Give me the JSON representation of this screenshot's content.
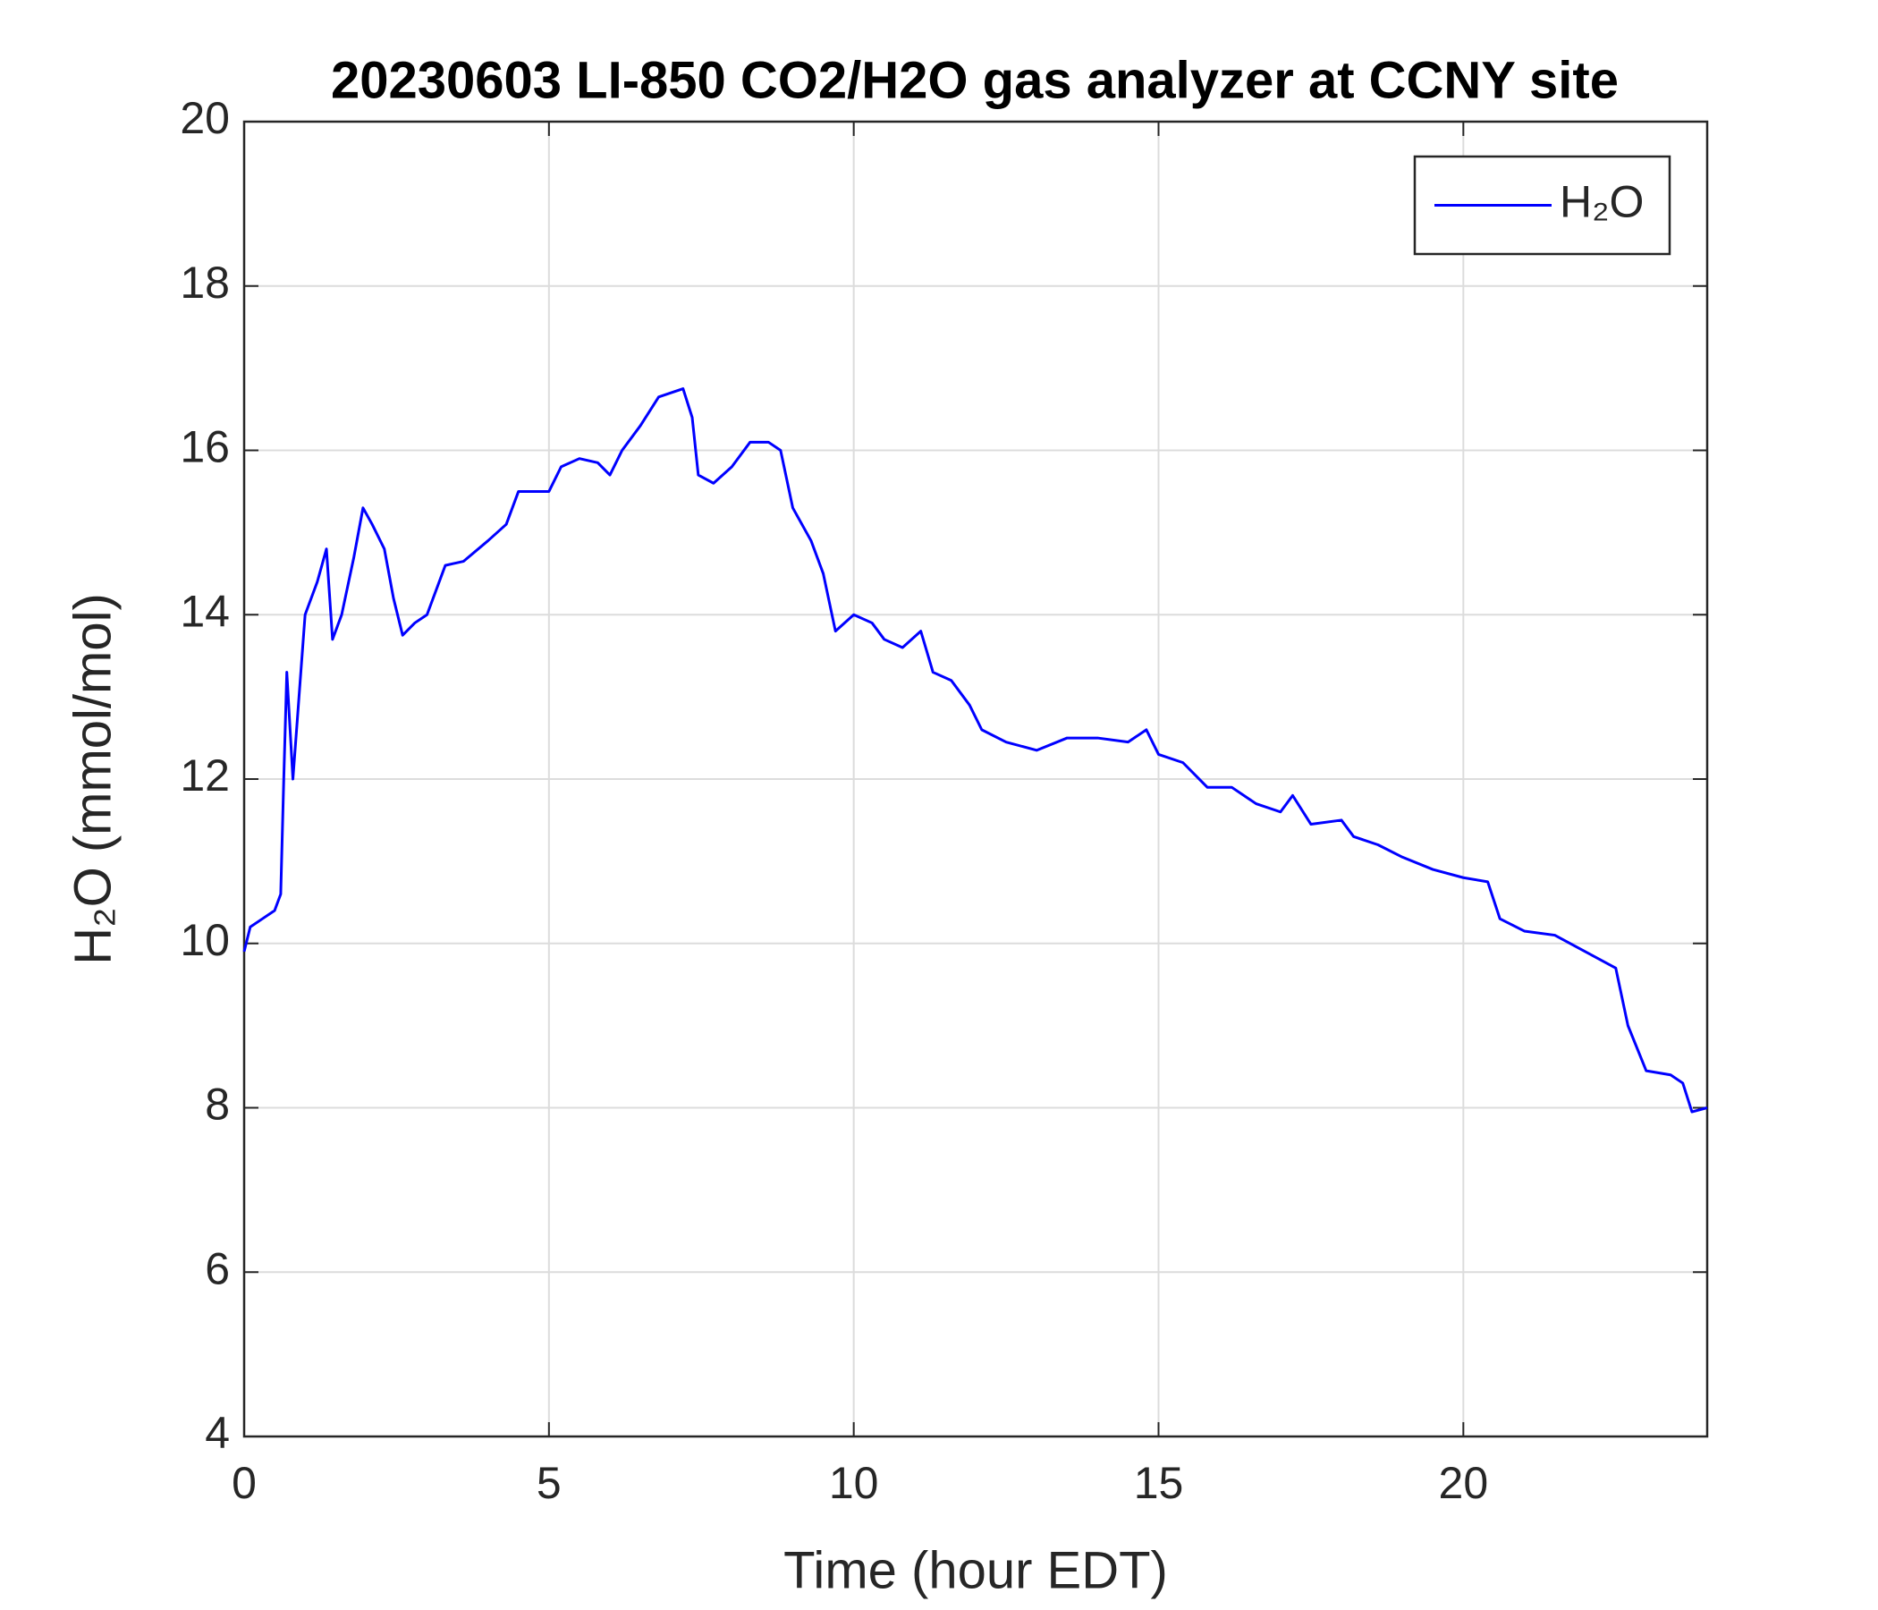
{
  "chart_data": {
    "type": "line",
    "title": "20230603 LI-850 CO2/H2O gas analyzer at CCNY site",
    "xlabel": "Time (hour EDT)",
    "ylabel": "H₂O (mmol/mol)",
    "x": [
      0,
      0.1,
      0.3,
      0.5,
      0.6,
      0.65,
      0.7,
      0.8,
      0.9,
      1.0,
      1.2,
      1.35,
      1.45,
      1.6,
      1.8,
      1.95,
      2.1,
      2.3,
      2.45,
      2.6,
      2.8,
      3.0,
      3.3,
      3.6,
      4.0,
      4.3,
      4.5,
      4.8,
      5.0,
      5.2,
      5.5,
      5.8,
      6.0,
      6.2,
      6.5,
      6.8,
      7.0,
      7.2,
      7.35,
      7.45,
      7.7,
      8.0,
      8.3,
      8.6,
      8.8,
      9.0,
      9.3,
      9.5,
      9.7,
      10.0,
      10.3,
      10.5,
      10.8,
      11.1,
      11.3,
      11.6,
      11.9,
      12.1,
      12.5,
      13.0,
      13.5,
      14.0,
      14.5,
      14.8,
      15.0,
      15.4,
      15.8,
      16.2,
      16.6,
      17.0,
      17.2,
      17.5,
      18.0,
      18.2,
      18.6,
      19.0,
      19.5,
      20.0,
      20.4,
      20.6,
      21.0,
      21.5,
      22.0,
      22.5,
      22.7,
      23.0,
      23.4,
      23.6,
      23.75,
      24.0
    ],
    "series": [
      {
        "name": "H₂O",
        "color": "#0000ff",
        "values": [
          9.9,
          10.2,
          10.3,
          10.4,
          10.6,
          12.0,
          13.3,
          12.0,
          13.0,
          14.0,
          14.4,
          14.8,
          13.7,
          14.0,
          14.7,
          15.3,
          15.1,
          14.8,
          14.2,
          13.75,
          13.9,
          14.0,
          14.6,
          14.65,
          14.9,
          15.1,
          15.5,
          15.5,
          15.5,
          15.8,
          15.9,
          15.85,
          15.7,
          16.0,
          16.3,
          16.65,
          16.7,
          16.75,
          16.4,
          15.7,
          15.6,
          15.8,
          16.1,
          16.1,
          16.0,
          15.3,
          14.9,
          14.5,
          13.8,
          14.0,
          13.9,
          13.7,
          13.6,
          13.8,
          13.3,
          13.2,
          12.9,
          12.6,
          12.45,
          12.35,
          12.5,
          12.5,
          12.45,
          12.6,
          12.3,
          12.2,
          11.9,
          11.9,
          11.7,
          11.6,
          11.8,
          11.45,
          11.5,
          11.3,
          11.2,
          11.05,
          10.9,
          10.8,
          10.75,
          10.3,
          10.15,
          10.1,
          9.9,
          9.7,
          9.0,
          8.45,
          8.4,
          8.3,
          7.95,
          8.0
        ]
      }
    ],
    "xlim": [
      0,
      24
    ],
    "xticks": [
      0,
      5,
      10,
      15,
      20
    ],
    "ylim": [
      4,
      20
    ],
    "yticks": [
      4,
      6,
      8,
      10,
      12,
      14,
      16,
      18,
      20
    ],
    "grid": true,
    "legend": "top-right"
  }
}
